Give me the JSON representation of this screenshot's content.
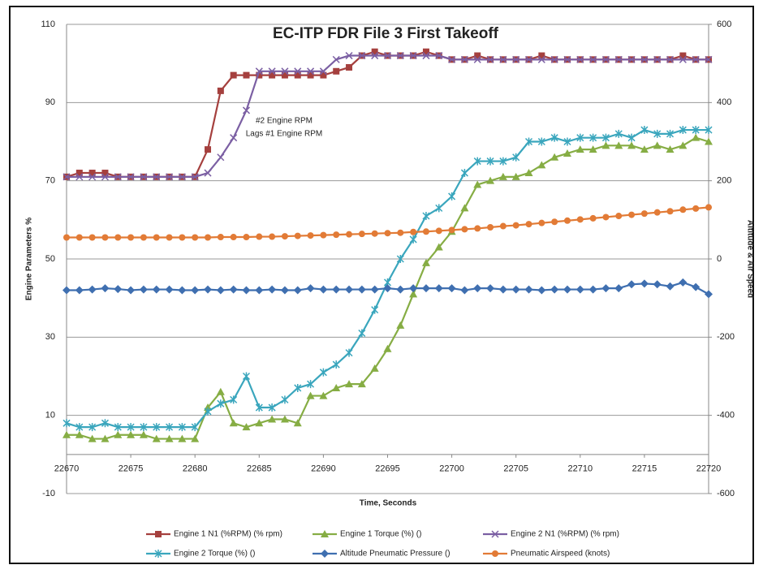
{
  "chart_data": {
    "type": "line",
    "title": "EC-ITP    FDR File 3   First Takeoff",
    "x_label": "Time, Seconds",
    "y_label": "Engine Parameters %",
    "y2_label": "Altitude & Air Speed",
    "annotation": [
      "#2 Engine RPM",
      "Lags #1 Engine RPM"
    ],
    "x": [
      22670,
      22671,
      22672,
      22673,
      22674,
      22675,
      22676,
      22677,
      22678,
      22679,
      22680,
      22681,
      22682,
      22683,
      22684,
      22685,
      22686,
      22687,
      22688,
      22689,
      22690,
      22691,
      22692,
      22693,
      22694,
      22695,
      22696,
      22697,
      22698,
      22699,
      22700,
      22701,
      22702,
      22703,
      22704,
      22705,
      22706,
      22707,
      22708,
      22709,
      22710,
      22711,
      22712,
      22713,
      22714,
      22715,
      22716,
      22717,
      22718,
      22719,
      22720
    ],
    "xlim": [
      22670,
      22720
    ],
    "xticks": [
      22670,
      22675,
      22680,
      22685,
      22690,
      22695,
      22700,
      22705,
      22710,
      22715,
      22720
    ],
    "ylim": [
      -10,
      110
    ],
    "yticks": [
      -10,
      10,
      30,
      50,
      70,
      90,
      110
    ],
    "y2lim": [
      -600,
      600
    ],
    "y2ticks": [
      -600,
      -400,
      -200,
      0,
      200,
      400,
      600
    ],
    "grid": true,
    "legend": "bottom",
    "series": [
      {
        "name": "Engine 1 N1 (%RPM) (% rpm)",
        "color": "#a5403e",
        "marker": "square",
        "values": [
          71,
          72,
          72,
          72,
          71,
          71,
          71,
          71,
          71,
          71,
          71,
          78,
          93,
          97,
          97,
          97,
          97,
          97,
          97,
          97,
          97,
          98,
          99,
          102,
          103,
          102,
          102,
          102,
          103,
          102,
          101,
          101,
          102,
          101,
          101,
          101,
          101,
          102,
          101,
          101,
          101,
          101,
          101,
          101,
          101,
          101,
          101,
          101,
          102,
          101,
          101
        ]
      },
      {
        "name": "Engine 1  Torque (%) ()",
        "color": "#86ad44",
        "marker": "triangle",
        "values": [
          5,
          5,
          4,
          4,
          5,
          5,
          5,
          4,
          4,
          4,
          4,
          12,
          16,
          8,
          7,
          8,
          9,
          9,
          8,
          15,
          15,
          17,
          18,
          18,
          22,
          27,
          33,
          41,
          49,
          53,
          57,
          63,
          69,
          70,
          71,
          71,
          72,
          74,
          76,
          77,
          78,
          78,
          79,
          79,
          79,
          78,
          79,
          78,
          79,
          81,
          80
        ]
      },
      {
        "name": "Engine 2 N1 (%RPM) (% rpm)",
        "color": "#7b5fa3",
        "marker": "x",
        "values": [
          71,
          71,
          71,
          71,
          71,
          71,
          71,
          71,
          71,
          71,
          71,
          72,
          76,
          81,
          88,
          98,
          98,
          98,
          98,
          98,
          98,
          101,
          102,
          102,
          102,
          102,
          102,
          102,
          102,
          102,
          101,
          101,
          101,
          101,
          101,
          101,
          101,
          101,
          101,
          101,
          101,
          101,
          101,
          101,
          101,
          101,
          101,
          101,
          101,
          101,
          101
        ]
      },
      {
        "name": "Engine 2  Torque (%) ()",
        "color": "#3aa6bd",
        "marker": "star",
        "values": [
          8,
          7,
          7,
          8,
          7,
          7,
          7,
          7,
          7,
          7,
          7,
          11,
          13,
          14,
          20,
          12,
          12,
          14,
          17,
          18,
          21,
          23,
          26,
          31,
          37,
          44,
          50,
          55,
          61,
          63,
          66,
          72,
          75,
          75,
          75,
          76,
          80,
          80,
          81,
          80,
          81,
          81,
          81,
          82,
          81,
          83,
          82,
          82,
          83,
          83,
          83
        ]
      },
      {
        "name": "Altitude Pneumatic Pressure ()",
        "color": "#3f6fb0",
        "marker": "diamond",
        "axis": "y2",
        "values": [
          -80,
          -80,
          -78,
          -75,
          -77,
          -80,
          -78,
          -78,
          -78,
          -80,
          -80,
          -78,
          -80,
          -78,
          -80,
          -80,
          -78,
          -80,
          -80,
          -75,
          -78,
          -78,
          -78,
          -78,
          -78,
          -75,
          -78,
          -75,
          -75,
          -75,
          -75,
          -80,
          -75,
          -75,
          -78,
          -78,
          -78,
          -80,
          -78,
          -78,
          -78,
          -78,
          -75,
          -75,
          -65,
          -63,
          -65,
          -70,
          -60,
          -72,
          -90
        ]
      },
      {
        "name": "Pneumatic Airspeed (knots)",
        "color": "#e27b36",
        "marker": "circle",
        "axis": "y2",
        "values": [
          55,
          55,
          55,
          55,
          55,
          55,
          55,
          55,
          55,
          55,
          55,
          55,
          56,
          56,
          56,
          57,
          57,
          58,
          59,
          60,
          61,
          62,
          63,
          64,
          65,
          66,
          67,
          69,
          70,
          72,
          74,
          76,
          78,
          81,
          84,
          86,
          89,
          92,
          95,
          98,
          101,
          104,
          107,
          110,
          113,
          116,
          119,
          122,
          126,
          129,
          132
        ]
      }
    ]
  }
}
